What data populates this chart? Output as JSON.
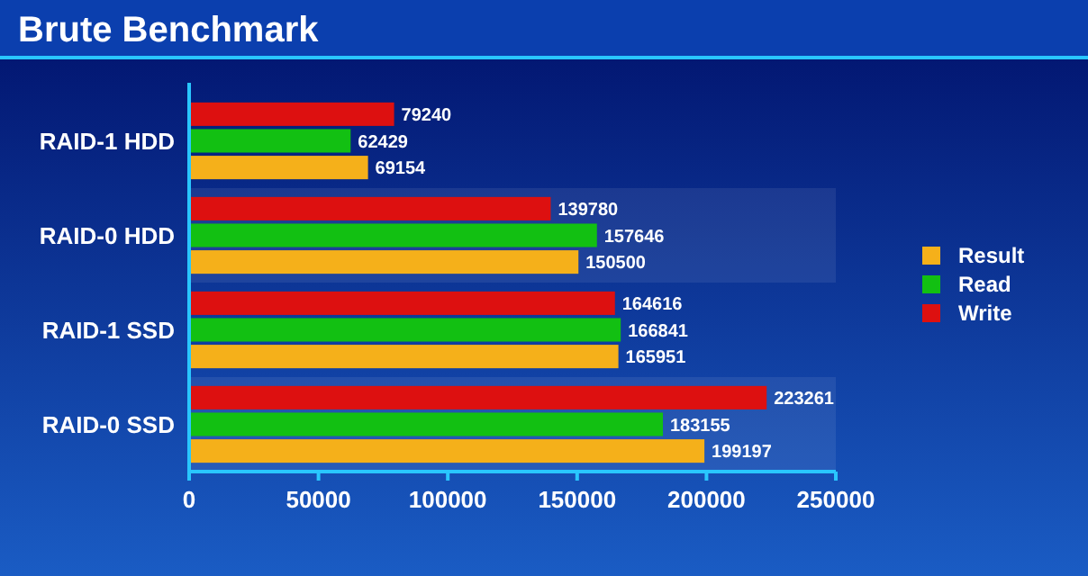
{
  "chart_data": {
    "type": "bar",
    "orientation": "horizontal",
    "title": "Brute Benchmark",
    "categories": [
      "RAID-1 HDD",
      "RAID-0 HDD",
      "RAID-1 SSD",
      "RAID-0 SSD"
    ],
    "series": [
      {
        "name": "Result",
        "color": "#f5b01a",
        "values": [
          69154,
          150500,
          165951,
          199197
        ]
      },
      {
        "name": "Read",
        "color": "#12c012",
        "values": [
          62429,
          157646,
          166841,
          183155
        ]
      },
      {
        "name": "Write",
        "color": "#dd1010",
        "values": [
          79240,
          139780,
          164616,
          223261
        ]
      }
    ],
    "xlim": [
      0,
      250000
    ],
    "xticks": [
      0,
      50000,
      100000,
      150000,
      200000,
      250000
    ],
    "data_labels": true,
    "legend": "right"
  }
}
